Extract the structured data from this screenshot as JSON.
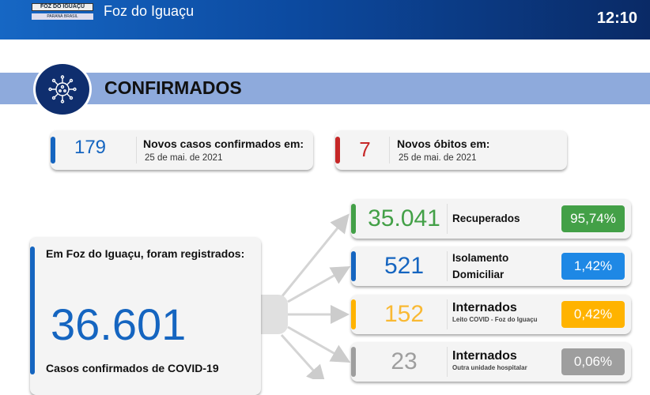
{
  "header": {
    "logo_text": "FOZ DO IGUAÇU",
    "logo_sub": "PARANÁ  BRASIL",
    "city": "Foz do Iguaçu",
    "time": "12:10"
  },
  "section": {
    "title": "CONFIRMADOS",
    "icon": "virus-icon"
  },
  "new_cases": {
    "value": "179",
    "label": "Novos casos confirmados em:",
    "date": "25 de mai. de 2021",
    "color": "#1565c0"
  },
  "new_deaths": {
    "value": "7",
    "label": "Novos óbitos em:",
    "date": "25 de mai. de 2021",
    "color": "#c62828"
  },
  "total": {
    "heading": "Em Foz do Iguaçu, foram registrados:",
    "value": "36.601",
    "caption": "Casos confirmados de COVID-19",
    "color": "#1565c0"
  },
  "breakdown": [
    {
      "value": "35.041",
      "label": "Recuperados",
      "sub": "",
      "percent": "95,74%",
      "color": "#43a047"
    },
    {
      "value": "521",
      "label": "Isolamento",
      "label2": "Domiciliar",
      "sub": "",
      "percent": "1,42%",
      "color": "#1e88e5",
      "num_color": "#1565c0"
    },
    {
      "value": "152",
      "label": "Internados",
      "sub": "Leito COVID - Foz do Iguaçu",
      "percent": "0,42%",
      "color": "#ffb300"
    },
    {
      "value": "23",
      "label": "Internados",
      "sub": "Outra unidade hospitalar",
      "percent": "0,06%",
      "color": "#9e9e9e"
    }
  ]
}
